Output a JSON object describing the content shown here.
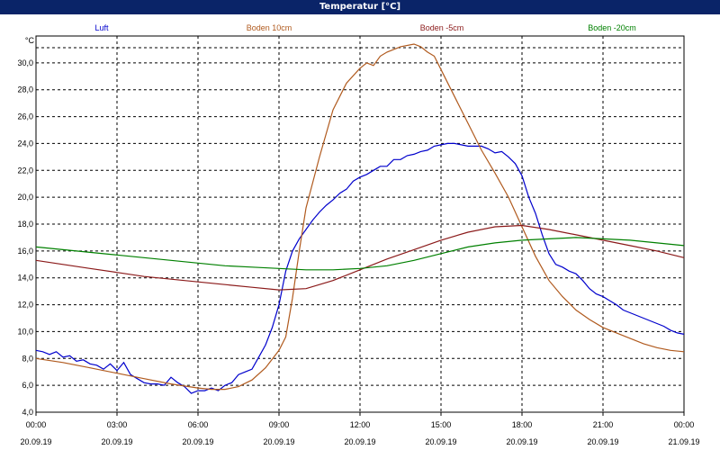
{
  "window": {
    "title": "Temperatur [°C]"
  },
  "chart_data": {
    "type": "line",
    "title": "Temperatur [°C]",
    "ylabel": "°C",
    "xlabel": "",
    "ylim": [
      4.0,
      32.0
    ],
    "yticks": [
      "4,0",
      "6,0",
      "8,0",
      "10,0",
      "12,0",
      "14,0",
      "16,0",
      "18,0",
      "20,0",
      "22,0",
      "24,0",
      "26,0",
      "28,0",
      "30,0"
    ],
    "xlim": [
      0,
      24
    ],
    "xticks": [
      {
        "time": "00:00",
        "date": "20.09.19"
      },
      {
        "time": "03:00",
        "date": "20.09.19"
      },
      {
        "time": "06:00",
        "date": "20.09.19"
      },
      {
        "time": "09:00",
        "date": "20.09.19"
      },
      {
        "time": "12:00",
        "date": "20.09.19"
      },
      {
        "time": "15:00",
        "date": "20.09.19"
      },
      {
        "time": "18:00",
        "date": "20.09.19"
      },
      {
        "time": "21:00",
        "date": "20.09.19"
      },
      {
        "time": "00:00",
        "date": "21.09.19"
      }
    ],
    "grid": true,
    "legend_position": "top",
    "series": [
      {
        "name": "Luft",
        "color": "#0000cc",
        "x": [
          0,
          0.25,
          0.5,
          0.75,
          1,
          1.25,
          1.5,
          1.75,
          2,
          2.25,
          2.5,
          2.75,
          3,
          3.25,
          3.5,
          3.75,
          4,
          4.25,
          4.5,
          4.75,
          5,
          5.25,
          5.5,
          5.75,
          6,
          6.25,
          6.5,
          6.75,
          7,
          7.25,
          7.5,
          7.75,
          8,
          8.25,
          8.5,
          8.75,
          9,
          9.25,
          9.5,
          9.75,
          10,
          10.25,
          10.5,
          10.75,
          11,
          11.25,
          11.5,
          11.75,
          12,
          12.25,
          12.5,
          12.75,
          13,
          13.25,
          13.5,
          13.75,
          14,
          14.25,
          14.5,
          14.75,
          15,
          15.25,
          15.5,
          15.75,
          16,
          16.25,
          16.5,
          16.75,
          17,
          17.25,
          17.5,
          17.75,
          18,
          18.25,
          18.5,
          18.75,
          19,
          19.25,
          19.5,
          19.75,
          20,
          20.25,
          20.5,
          20.75,
          21,
          21.25,
          21.5,
          21.75,
          22,
          22.25,
          22.5,
          22.75,
          23,
          23.25,
          23.5,
          23.75,
          24
        ],
        "y": [
          8.6,
          8.5,
          8.3,
          8.5,
          8.1,
          8.2,
          7.8,
          7.9,
          7.6,
          7.5,
          7.2,
          7.6,
          7.1,
          7.7,
          6.8,
          6.5,
          6.2,
          6.1,
          6.1,
          6.0,
          6.6,
          6.2,
          5.9,
          5.4,
          5.6,
          5.6,
          5.8,
          5.6,
          6.0,
          6.2,
          6.8,
          7.0,
          7.2,
          8.1,
          9.0,
          10.3,
          12.0,
          14.5,
          16.0,
          16.9,
          17.6,
          18.3,
          18.9,
          19.4,
          19.8,
          20.3,
          20.6,
          21.2,
          21.5,
          21.7,
          22.0,
          22.3,
          22.3,
          22.8,
          22.8,
          23.1,
          23.2,
          23.4,
          23.5,
          23.8,
          23.9,
          24.0,
          24.0,
          23.9,
          23.8,
          23.8,
          23.8,
          23.6,
          23.3,
          23.4,
          23.0,
          22.5,
          21.6,
          20.0,
          18.8,
          17.2,
          15.8,
          15.0,
          14.8,
          14.5,
          14.3,
          13.8,
          13.2,
          12.8,
          12.6,
          12.3,
          12.0,
          11.6,
          11.4,
          11.2,
          11.0,
          10.8,
          10.6,
          10.4,
          10.1,
          9.9,
          9.8
        ]
      },
      {
        "name": "Boden 10cm",
        "color": "#b05a1e",
        "x": [
          0,
          1,
          2,
          3,
          4,
          5,
          6,
          6.5,
          7,
          7.5,
          8,
          8.5,
          9,
          9.25,
          9.5,
          9.75,
          10,
          10.5,
          11,
          11.5,
          12,
          12.25,
          12.5,
          12.75,
          13,
          13.5,
          14,
          14.25,
          14.5,
          14.75,
          15,
          15.5,
          16,
          16.5,
          17,
          17.5,
          18,
          18.5,
          19,
          19.5,
          20,
          20.5,
          21,
          21.5,
          22,
          22.5,
          23,
          23.5,
          24
        ],
        "y": [
          8.0,
          7.7,
          7.3,
          6.9,
          6.5,
          6.1,
          5.8,
          5.7,
          5.7,
          5.9,
          6.4,
          7.3,
          8.6,
          9.6,
          12.5,
          16.0,
          19.2,
          23.0,
          26.5,
          28.5,
          29.6,
          30.0,
          29.8,
          30.5,
          30.8,
          31.2,
          31.4,
          31.2,
          30.8,
          30.5,
          29.5,
          27.5,
          25.5,
          23.5,
          21.8,
          20.0,
          17.8,
          15.6,
          13.8,
          12.6,
          11.6,
          10.9,
          10.3,
          9.9,
          9.5,
          9.1,
          8.8,
          8.6,
          8.5
        ]
      },
      {
        "name": "Boden -5cm",
        "color": "#8b1a1a",
        "x": [
          0,
          1,
          2,
          3,
          4,
          5,
          6,
          7,
          8,
          9,
          10,
          11,
          12,
          13,
          14,
          15,
          16,
          17,
          18,
          19,
          20,
          21,
          22,
          23,
          24
        ],
        "y": [
          15.3,
          15.0,
          14.7,
          14.4,
          14.1,
          13.9,
          13.7,
          13.5,
          13.3,
          13.1,
          13.2,
          13.8,
          14.6,
          15.4,
          16.1,
          16.8,
          17.4,
          17.8,
          17.9,
          17.6,
          17.2,
          16.8,
          16.4,
          16.0,
          15.5
        ]
      },
      {
        "name": "Boden -20cm",
        "color": "#008000",
        "x": [
          0,
          1,
          2,
          3,
          4,
          5,
          6,
          7,
          8,
          9,
          10,
          11,
          12,
          13,
          14,
          15,
          16,
          17,
          18,
          19,
          20,
          21,
          22,
          23,
          24
        ],
        "y": [
          16.3,
          16.1,
          15.9,
          15.7,
          15.5,
          15.3,
          15.1,
          14.9,
          14.8,
          14.7,
          14.6,
          14.6,
          14.7,
          14.9,
          15.3,
          15.8,
          16.3,
          16.6,
          16.8,
          16.9,
          17.0,
          16.9,
          16.8,
          16.6,
          16.4
        ]
      }
    ]
  }
}
